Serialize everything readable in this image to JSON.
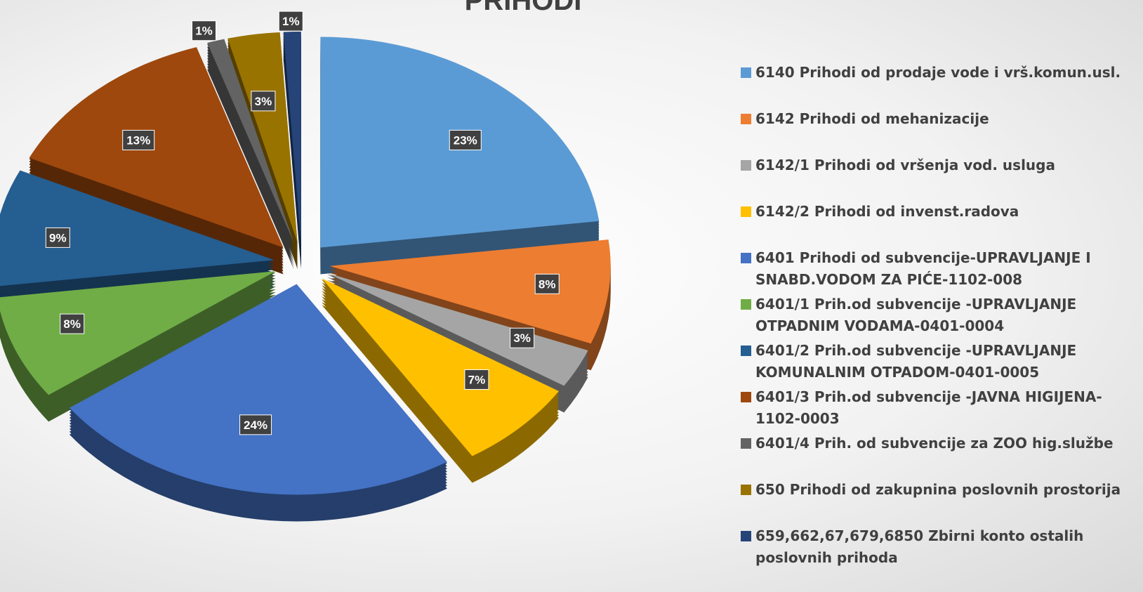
{
  "chart_data": {
    "type": "pie",
    "title": "PRIHODI",
    "categories": [
      "6140 Prihodi od prodaje vode i vrš.komun.usl.",
      "6142 Prihodi od mehanizacije",
      "6142/1 Prihodi od vršenja vod. usluga",
      "6142/2 Prihodi od invenst.radova",
      "6401 Prihodi od subvencije-UPRAVLJANJE I SNABD.VODOM ZA PIĆE-1102-008",
      "6401/1 Prih.od subvencije -UPRAVLJANJE OTPADNIM VODAMA-0401-0004",
      "6401/2 Prih.od subvencije -UPRAVLJANJE KOMUNALNIM OTPADOM-0401-0005",
      "6401/3 Prih.od subvencije -JAVNA HIGIJENA-1102-0003",
      "6401/4 Prih. od subvencije za ZOO hig.službe",
      "650 Prihodi od zakupnina poslovnih prostorija",
      "659,662,67,679,6850 Zbirni konto ostalih poslovnih prihoda"
    ],
    "values": [
      23,
      8,
      3,
      7,
      24,
      8,
      9,
      13,
      1,
      3,
      1
    ],
    "value_labels": [
      "23%",
      "8%",
      "3%",
      "7%",
      "24%",
      "8%",
      "9%",
      "13%",
      "1%",
      "3%",
      "1%"
    ],
    "colors": [
      "#5b9bd5",
      "#ed7d31",
      "#a5a5a5",
      "#ffc000",
      "#4472c4",
      "#70ad47",
      "#255e91",
      "#9e480e",
      "#636363",
      "#997300",
      "#264478"
    ]
  }
}
